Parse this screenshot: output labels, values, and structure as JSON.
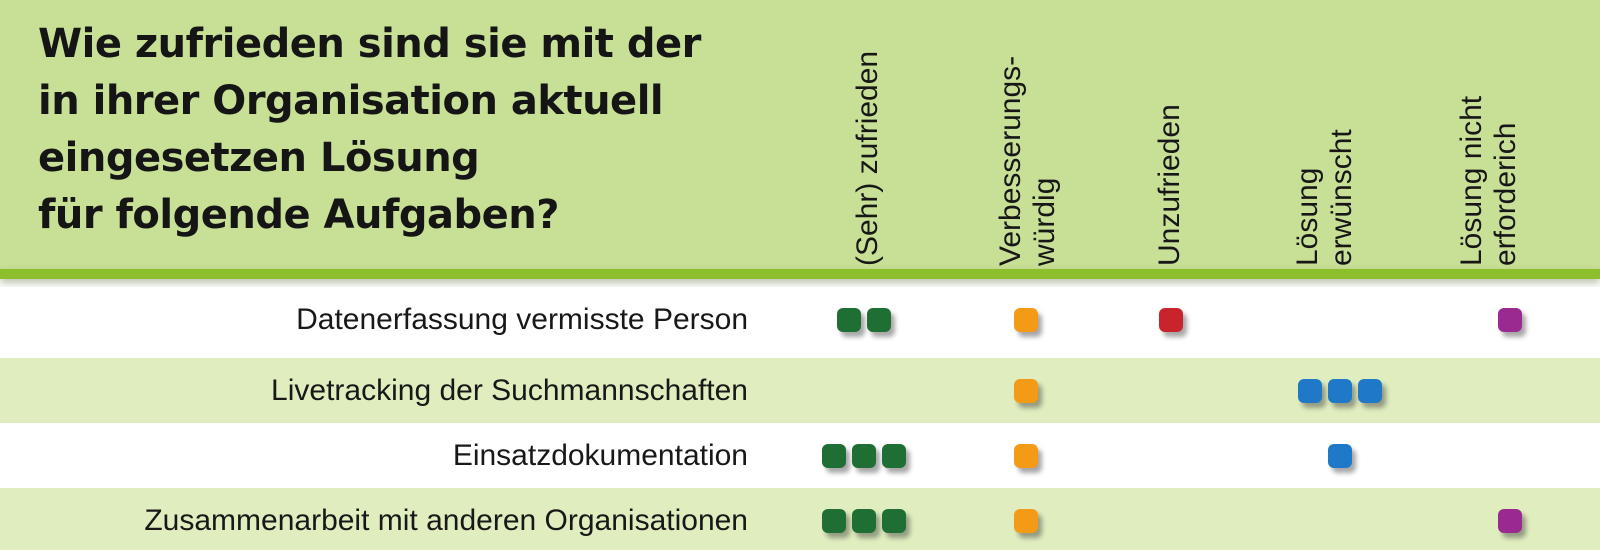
{
  "header": {
    "title_lines": [
      "Wie zufrieden sind sie mit der",
      "in ihrer Organisation aktuell",
      "eingesetzen Lösung",
      "für folgende Aufgaben?"
    ]
  },
  "chart_data": {
    "type": "table",
    "title": "Wie zufrieden sind sie mit der in ihrer Organisation aktuell eingesetzen Lösung für folgende Aufgaben?",
    "columns": [
      {
        "label_lines": [
          "(Sehr) zufrieden"
        ],
        "label": "(Sehr) zufrieden",
        "color": "#1f6f35"
      },
      {
        "label_lines": [
          "Verbesserungs-",
          "würdig"
        ],
        "label": "Verbesserungs-würdig",
        "color": "#f39a16"
      },
      {
        "label_lines": [
          "Unzufrieden"
        ],
        "label": "Unzufrieden",
        "color": "#c9242b"
      },
      {
        "label_lines": [
          "Lösung",
          "erwünscht"
        ],
        "label": "Lösung erwünscht",
        "color": "#1f78c8"
      },
      {
        "label_lines": [
          "Lösung nicht",
          "erforderich"
        ],
        "label": "Lösung nicht erforderich",
        "color": "#9b2a90"
      }
    ],
    "rows": [
      {
        "label": "Datenerfassung vermisste Person",
        "values": [
          2,
          1,
          1,
          0,
          1
        ]
      },
      {
        "label": "Livetracking der Suchmannschaften",
        "values": [
          0,
          1,
          0,
          3,
          0
        ]
      },
      {
        "label": "Einsatzdokumentation",
        "values": [
          3,
          1,
          0,
          1,
          0
        ]
      },
      {
        "label": "Zusammenarbeit mit anderen Organisationen",
        "values": [
          3,
          1,
          0,
          0,
          1
        ]
      }
    ]
  }
}
